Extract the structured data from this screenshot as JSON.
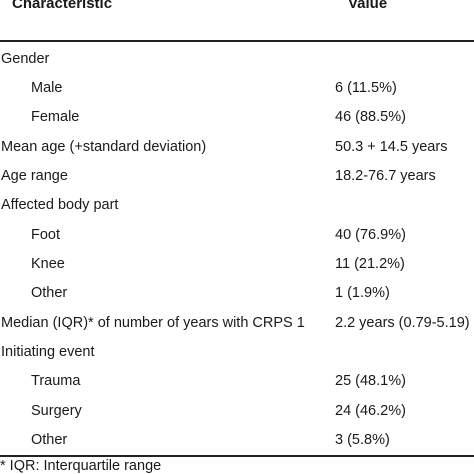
{
  "table": {
    "headers": {
      "characteristic": "Characteristic",
      "value": "Value"
    },
    "rows": [
      {
        "label": "Gender",
        "value": ""
      },
      {
        "label": "Male",
        "value": "6 (11.5%)"
      },
      {
        "label": "Female",
        "value": "46 (88.5%)"
      },
      {
        "label": "Mean age (+standard deviation)",
        "value": "50.3 + 14.5 years"
      },
      {
        "label": "Age range",
        "value": "18.2-76.7 years"
      },
      {
        "label": "Affected body part",
        "value": ""
      },
      {
        "label": "Foot",
        "value": "40 (76.9%)"
      },
      {
        "label": "Knee",
        "value": "11 (21.2%)"
      },
      {
        "label": "Other",
        "value": "1 (1.9%)"
      },
      {
        "label": "Median (IQR)* of number of years with CRPS 1",
        "value": "2.2 years (0.79-5.19)"
      },
      {
        "label": "Initiating event",
        "value": ""
      },
      {
        "label": "Trauma",
        "value": "25 (48.1%)"
      },
      {
        "label": "Surgery",
        "value": "24 (46.2%)"
      },
      {
        "label": "Other",
        "value": "3 (5.8%)"
      }
    ],
    "footnote": "* IQR: Interquartile range"
  }
}
